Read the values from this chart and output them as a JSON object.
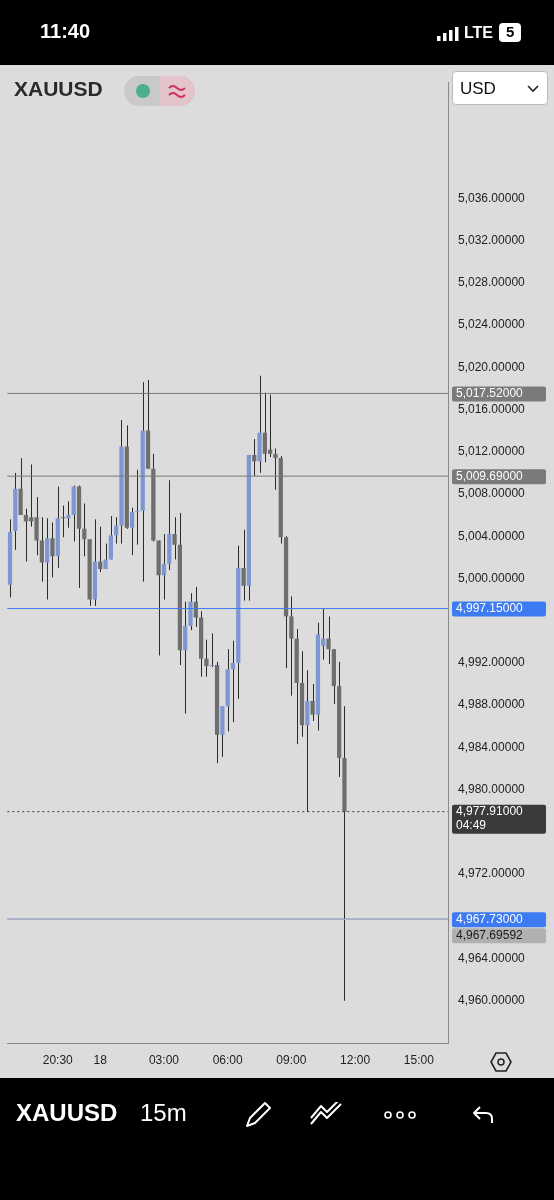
{
  "chart_data": {
    "type": "candlestick",
    "title": "XAUUSD",
    "categories": [
      null,
      null,
      null,
      null,
      null,
      null,
      null,
      null,
      null,
      "20:30",
      null,
      null,
      null,
      null,
      null,
      null,
      null,
      "18",
      null,
      null,
      null,
      null,
      null,
      null,
      null,
      null,
      null,
      null,
      null,
      "03:00",
      null,
      null,
      null,
      null,
      null,
      null,
      null,
      null,
      null,
      null,
      null,
      "06:00",
      null,
      null,
      null,
      null,
      null,
      null,
      null,
      null,
      null,
      null,
      null,
      "09:00",
      null,
      null,
      null,
      null,
      null,
      null,
      null,
      null,
      null,
      null,
      null,
      "12:00",
      null,
      null,
      null,
      null,
      null,
      null,
      null,
      null,
      null,
      null,
      null,
      "15:00",
      null,
      null,
      null,
      null,
      null
    ],
    "ohlc": [
      [
        4999.4,
        5005.6,
        4998.2,
        5004.4
      ],
      [
        5004.5,
        5010.0,
        5002.7,
        5008.5
      ],
      [
        5008.5,
        5011.4,
        5006.0,
        5006.0
      ],
      [
        5006.0,
        5006.6,
        5001.6,
        5005.4
      ],
      [
        5005.8,
        5010.8,
        5004.9,
        5005.4
      ],
      [
        5005.8,
        5007.7,
        5002.2,
        5003.6
      ],
      [
        5003.6,
        5005.8,
        4999.7,
        5001.5
      ],
      [
        5001.5,
        5005.7,
        4998.0,
        5003.8
      ],
      [
        5003.8,
        5005.3,
        5000.1,
        5002.1
      ],
      [
        5002.1,
        5008.7,
        5001.0,
        5005.7
      ],
      [
        5005.8,
        5006.9,
        5003.9,
        5005.7
      ],
      [
        5005.7,
        5007.3,
        5004.8,
        5006.0
      ],
      [
        5006.0,
        5008.8,
        5003.5,
        5008.7
      ],
      [
        5008.7,
        5008.8,
        4999.1,
        5004.7
      ],
      [
        5004.7,
        5007.1,
        5002.1,
        5003.7
      ],
      [
        5003.7,
        5003.7,
        4997.4,
        4998.0
      ],
      [
        4998.0,
        5005.6,
        4997.4,
        5001.6
      ],
      [
        5001.6,
        5004.9,
        5000.6,
        5000.9
      ],
      [
        5000.9,
        5003.3,
        5000.9,
        5001.8
      ],
      [
        5001.8,
        5005.9,
        5001.8,
        5004.1
      ],
      [
        5004.1,
        5005.8,
        5003.3,
        5005.0
      ],
      [
        5005.0,
        5015.0,
        5003.3,
        5012.5
      ],
      [
        5012.5,
        5014.5,
        5004.7,
        5004.8
      ],
      [
        5004.8,
        5006.7,
        5002.2,
        5006.3
      ],
      [
        5006.3,
        5010.3,
        5003.2,
        5006.4
      ],
      [
        5006.4,
        5018.6,
        4999.7,
        5014.0
      ],
      [
        5014.0,
        5018.8,
        5010.4,
        5010.4
      ],
      [
        5010.4,
        5011.8,
        5003.5,
        5003.6
      ],
      [
        5003.6,
        5003.6,
        4992.7,
        5000.3
      ],
      [
        5000.3,
        5004.2,
        4998.0,
        5001.4
      ],
      [
        5001.4,
        5009.3,
        5000.8,
        5004.2
      ],
      [
        5004.2,
        5005.8,
        5001.8,
        5003.2
      ],
      [
        5003.2,
        5006.2,
        4991.8,
        4993.2
      ],
      [
        4993.2,
        4997.8,
        4987.2,
        4995.5
      ],
      [
        4995.5,
        4998.6,
        4995.1,
        4997.8
      ],
      [
        4997.8,
        4999.2,
        4995.4,
        4996.3
      ],
      [
        4996.3,
        4996.9,
        4990.7,
        4992.4
      ],
      [
        4992.4,
        4994.2,
        4990.7,
        4991.7
      ],
      [
        4991.7,
        4994.8,
        4991.6,
        4991.8
      ],
      [
        4991.8,
        4992.1,
        4982.5,
        4985.2
      ],
      [
        4985.2,
        4987.9,
        4983.1,
        4987.9
      ],
      [
        4987.9,
        4993.3,
        4985.5,
        4991.4
      ],
      [
        4991.4,
        4994.1,
        4986.4,
        4992.0
      ],
      [
        4992.0,
        5003.1,
        4988.6,
        5001.0
      ],
      [
        5001.0,
        5004.6,
        4997.9,
        4999.3
      ],
      [
        4999.3,
        5011.7,
        4997.9,
        5011.7
      ],
      [
        5011.7,
        5013.2,
        5009.7,
        5011.1
      ],
      [
        5011.1,
        5019.2,
        5010.0,
        5013.8
      ],
      [
        5013.8,
        5017.6,
        5011.0,
        5011.8
      ],
      [
        5012.2,
        5017.4,
        5011.5,
        5011.8
      ],
      [
        5011.8,
        5012.3,
        5008.4,
        5011.4
      ],
      [
        5011.4,
        5011.6,
        5003.3,
        5003.9
      ],
      [
        5003.9,
        5004.0,
        4991.5,
        4996.4
      ],
      [
        4996.4,
        4998.3,
        4988.9,
        4994.3
      ],
      [
        4994.3,
        4995.2,
        4984.3,
        4990.1
      ],
      [
        4990.1,
        4993.1,
        4985.0,
        4986.1
      ],
      [
        4986.1,
        4991.3,
        4977.9,
        4988.4
      ],
      [
        4988.4,
        4990.0,
        4986.5,
        4987.1
      ],
      [
        4987.1,
        4995.8,
        4985.6,
        4994.7
      ],
      [
        4993.6,
        4997.2,
        4992.3,
        4994.3
      ],
      [
        4994.3,
        4996.4,
        4991.9,
        4993.3
      ],
      [
        4993.3,
        4993.3,
        4988.1,
        4989.8
      ],
      [
        4989.8,
        4992.1,
        4981.2,
        4983.0
      ],
      [
        4983.0,
        4987.9,
        4960.0,
        4977.91
      ],
      null,
      null,
      null,
      null,
      null,
      null,
      null,
      null,
      null,
      null,
      null,
      null,
      null,
      null,
      null,
      null,
      null,
      null,
      null
    ],
    "colors": [
      "#7d97d3",
      "#7d97d3",
      "#6e6e6e",
      "#6e6e6e",
      "#6e6e6e",
      "#6e6e6e",
      "#6e6e6e",
      "#7d97d3",
      "#6e6e6e",
      "#7d97d3",
      "#6e6e6e",
      "#7d97d3",
      "#7d97d3",
      "#6e6e6e",
      "#6e6e6e",
      "#6e6e6e",
      "#7d97d3",
      "#6e6e6e",
      "#7d97d3",
      "#7d97d3",
      "#7d97d3",
      "#7d97d3",
      "#6e6e6e",
      "#7d97d3",
      "#7d97d3",
      "#7d97d3",
      "#6e6e6e",
      "#6e6e6e",
      "#6e6e6e",
      "#7d97d3",
      "#7d97d3",
      "#6e6e6e",
      "#6e6e6e",
      "#7d97d3",
      "#7d97d3",
      "#6e6e6e",
      "#6e6e6e",
      "#6e6e6e",
      "#7d97d3",
      "#6e6e6e",
      "#7d97d3",
      "#7d97d3",
      "#7d97d3",
      "#7d97d3",
      "#6e6e6e",
      "#7d97d3",
      "#6e6e6e",
      "#7d97d3",
      "#6e6e6e",
      "#6e6e6e",
      "#6e6e6e",
      "#6e6e6e",
      "#6e6e6e",
      "#6e6e6e",
      "#6e6e6e",
      "#6e6e6e",
      "#7d97d3",
      "#6e6e6e",
      "#7d97d3",
      "#7d97d3",
      "#6e6e6e",
      "#6e6e6e",
      "#6e6e6e",
      "#6e6e6e",
      null,
      null,
      null,
      null,
      null,
      null,
      null,
      null,
      null,
      null,
      null,
      null,
      null,
      null,
      null,
      null,
      null,
      null,
      null
    ],
    "ylim": [
      4956,
      5047
    ],
    "yticks": [
      {
        "value": 4960,
        "label": "4,960.00000"
      },
      {
        "value": 4964,
        "label": "4,964.00000"
      },
      {
        "value": 4972,
        "label": "4,972.00000"
      },
      {
        "value": 4980,
        "label": "4,980.00000"
      },
      {
        "value": 4984,
        "label": "4,984.00000"
      },
      {
        "value": 4988,
        "label": "4,988.00000"
      },
      {
        "value": 4992,
        "label": "4,992.00000"
      },
      {
        "value": 5000,
        "label": "5,000.00000"
      },
      {
        "value": 5004,
        "label": "5,004.00000"
      },
      {
        "value": 5008,
        "label": "5,008.00000"
      },
      {
        "value": 5012,
        "label": "5,012.00000"
      },
      {
        "value": 5016,
        "label": "5,016.00000"
      },
      {
        "value": 5020,
        "label": "5,020.00000"
      },
      {
        "value": 5024,
        "label": "5,024.00000"
      },
      {
        "value": 5028,
        "label": "5,028.00000"
      },
      {
        "value": 5032,
        "label": "5,032.00000"
      },
      {
        "value": 5036,
        "label": "5,036.00000"
      }
    ],
    "ref_lines": [
      {
        "axis": "y",
        "value": 5017.52,
        "label": "5,017.52000",
        "color": "#7a7a7a",
        "line_style": "solid"
      },
      {
        "axis": "y",
        "value": 5009.69,
        "label": "5,009.69000",
        "color": "#7a7a7a",
        "line_style": "solid"
      },
      {
        "axis": "y",
        "value": 4997.15,
        "label": "4,997.15000",
        "color": "#3d7bf2",
        "line_style": "solid"
      },
      {
        "axis": "y",
        "value": 4977.91,
        "label": "4,977.91000\n04:49",
        "color": "#3a3a3a",
        "line_style": "dotted"
      },
      {
        "axis": "y",
        "value": 4967.73,
        "label": "4,967.73000",
        "color": "#3d7bf2",
        "line_style": "solid"
      },
      {
        "axis": "y",
        "value": 4967.69592,
        "label": "4,967.69592",
        "color": "#b0b0b0",
        "line_style": "solid"
      }
    ],
    "annotations": [
      "11:40",
      "LTE",
      "5",
      "USD",
      "XAUUSD",
      "15m"
    ]
  }
}
